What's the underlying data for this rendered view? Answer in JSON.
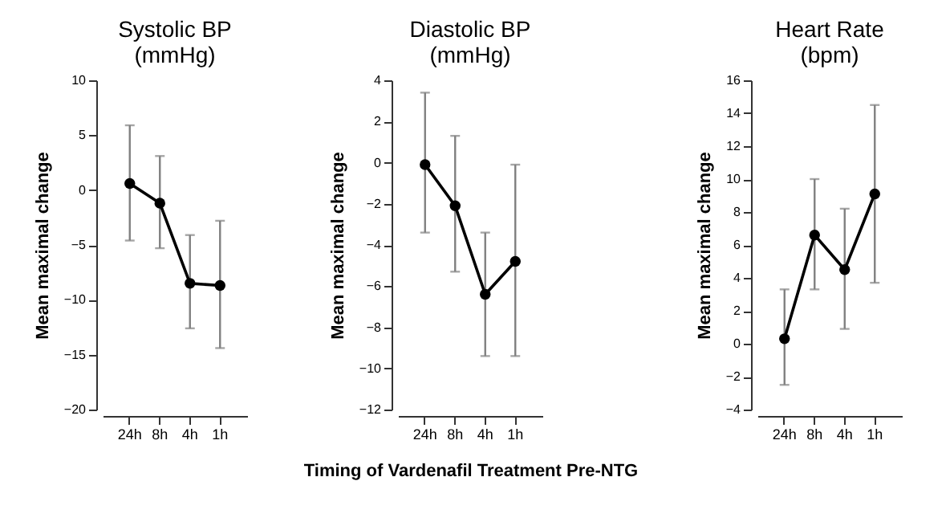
{
  "chart_data": [
    {
      "type": "line",
      "title": "Systolic BP\n(mmHg)",
      "ylabel": "Mean maximal change",
      "categories": [
        "24h",
        "8h",
        "4h",
        "1h"
      ],
      "series": [
        {
          "color": "#000000",
          "values": [
            0.6,
            -1.2,
            -8.5,
            -8.7
          ],
          "errors": [
            [
              -4.6,
              5.9
            ],
            [
              -5.3,
              3.1
            ],
            [
              -12.6,
              -4.1
            ],
            [
              -14.4,
              -2.8
            ]
          ]
        }
      ],
      "ylim": [
        -20,
        10
      ],
      "yticks": [
        -20,
        -15,
        -10,
        -5,
        0,
        5,
        10
      ],
      "grid": false,
      "marker": "circle",
      "line_style": "solid"
    },
    {
      "type": "line",
      "title": "Diastolic BP\n(mmHg)",
      "ylabel": "Mean maximal change",
      "xlabel": "Timing of Vardenafil Treatment Pre-NTG",
      "categories": [
        "24h",
        "8h",
        "4h",
        "1h"
      ],
      "series": [
        {
          "color": "#000000",
          "values": [
            -0.1,
            -2.1,
            -6.4,
            -4.8
          ],
          "errors": [
            [
              -3.4,
              3.4
            ],
            [
              -5.3,
              1.3
            ],
            [
              -9.4,
              -3.4
            ],
            [
              -9.4,
              -0.1
            ]
          ]
        }
      ],
      "ylim": [
        -12,
        4
      ],
      "yticks": [
        -12,
        -10,
        -8,
        -6,
        -4,
        -2,
        0,
        2,
        4
      ],
      "grid": false,
      "marker": "circle",
      "line_style": "solid"
    },
    {
      "type": "line",
      "title": "Heart Rate\n(bpm)",
      "ylabel": "Mean maximal change",
      "categories": [
        "24h",
        "8h",
        "4h",
        "1h"
      ],
      "series": [
        {
          "color": "#000000",
          "values": [
            0.3,
            6.6,
            4.5,
            9.1
          ],
          "errors": [
            [
              -2.5,
              3.3
            ],
            [
              3.3,
              10.0
            ],
            [
              0.9,
              8.2
            ],
            [
              3.7,
              14.5
            ]
          ]
        }
      ],
      "ylim": [
        -4,
        16
      ],
      "yticks": [
        -4,
        -2,
        0,
        2,
        4,
        6,
        8,
        10,
        12,
        14,
        16
      ],
      "grid": false,
      "marker": "circle",
      "line_style": "solid"
    }
  ]
}
